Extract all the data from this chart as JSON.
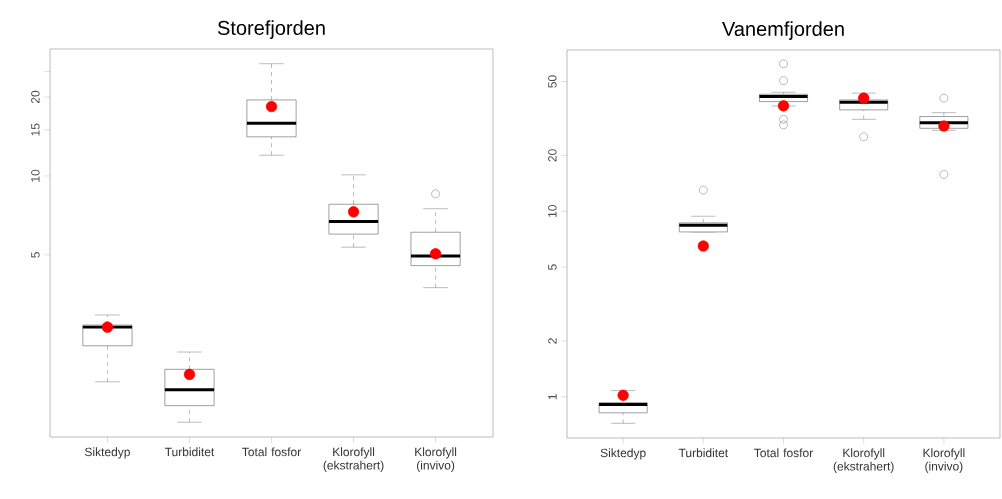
{
  "chart_data": [
    {
      "type": "box",
      "title": "Storefjorden",
      "categories": [
        "Siktedyp",
        "Turbiditet",
        "Total fosfor",
        "Klorofyll (ekstrahert)",
        "Klorofyll (invivo)"
      ],
      "log": true,
      "ylim": [
        1.01,
        30.5
      ],
      "yticks": [
        5,
        10,
        15,
        20,
        {
          "value": 25,
          "label": null
        }
      ],
      "boxes": [
        {
          "low": 1.64,
          "q1": 2.25,
          "median": 2.65,
          "q3": 2.7,
          "high": 2.95,
          "mean": 2.65
        },
        {
          "low": 1.15,
          "q1": 1.33,
          "median": 1.53,
          "q3": 1.83,
          "high": 2.13,
          "mean": 1.75
        },
        {
          "low": 12.0,
          "q1": 14.1,
          "median": 15.9,
          "q3": 19.5,
          "high": 26.8,
          "mean": 18.4
        },
        {
          "low": 5.35,
          "q1": 6.0,
          "median": 6.7,
          "q3": 7.8,
          "high": 10.1,
          "mean": 7.3
        },
        {
          "low": 3.75,
          "q1": 4.55,
          "median": 4.95,
          "q3": 6.1,
          "high": 7.5,
          "mean": 5.05,
          "outliers": [
            8.55
          ]
        }
      ]
    },
    {
      "type": "box",
      "title": "Vanemfjorden",
      "categories": [
        "Siktedyp",
        "Turbiditet",
        "Total fosfor",
        "Klorofyll (ekstrahert)",
        "Klorofyll (invivo)"
      ],
      "log": true,
      "ylim": [
        0.6,
        74
      ],
      "yticks": [
        1,
        2,
        5,
        10,
        20,
        50
      ],
      "boxes": [
        {
          "low": 0.72,
          "q1": 0.82,
          "median": 0.91,
          "q3": 0.93,
          "high": 1.08,
          "mean": 1.02
        },
        {
          "low": 7.74,
          "q1": 7.74,
          "median": 8.4,
          "q3": 8.66,
          "high": 9.4,
          "mean": 6.5,
          "outliers": [
            13.0
          ]
        },
        {
          "low": 36.9,
          "q1": 39.0,
          "median": 41.5,
          "q3": 42.7,
          "high": 43.8,
          "mean": 37.0,
          "outliers": [
            62.3,
            50.6,
            31.3,
            29.2
          ]
        },
        {
          "low": 31.3,
          "q1": 35.2,
          "median": 38.7,
          "q3": 39.8,
          "high": 43.3,
          "mean": 40.7,
          "outliers": [
            25.2
          ]
        },
        {
          "low": 27.3,
          "q1": 28.0,
          "median": 30.0,
          "q3": 32.4,
          "high": 34.0,
          "mean": 28.8,
          "outliers": [
            40.7,
            15.8
          ]
        }
      ]
    }
  ]
}
